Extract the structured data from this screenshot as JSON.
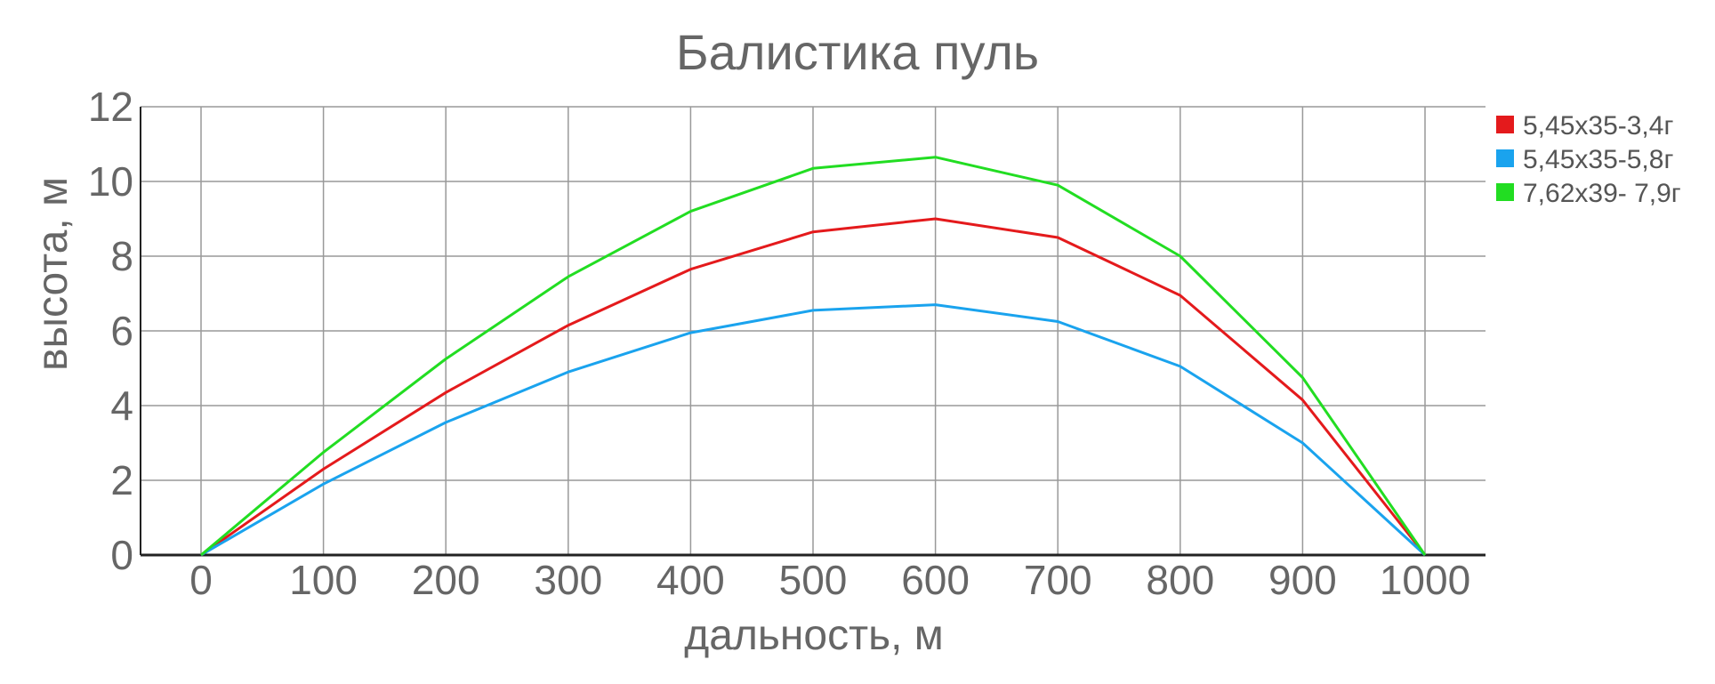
{
  "chart_data": {
    "type": "line",
    "title": "Балистика пуль",
    "xlabel": "дальность, м",
    "ylabel": "высота, м",
    "x": [
      0,
      100,
      200,
      300,
      400,
      500,
      600,
      700,
      800,
      900,
      1000
    ],
    "x_ticks": [
      "0",
      "100",
      "200",
      "300",
      "400",
      "500",
      "600",
      "700",
      "800",
      "900",
      "1000"
    ],
    "y_ticks": [
      "0",
      "2",
      "4",
      "6",
      "8",
      "10",
      "12"
    ],
    "ylim": [
      0,
      12
    ],
    "grid": true,
    "legend_position": "right",
    "series": [
      {
        "name": "5,45х35-3,4г",
        "color": "#e41a1c",
        "values": [
          0,
          2.3,
          4.35,
          6.15,
          7.65,
          8.65,
          9.0,
          8.5,
          6.95,
          4.15,
          0
        ]
      },
      {
        "name": "5,45х35-5,8г",
        "color": "#1aa3ee",
        "values": [
          0,
          1.9,
          3.55,
          4.9,
          5.95,
          6.55,
          6.7,
          6.25,
          5.05,
          3.0,
          0
        ]
      },
      {
        "name": "7,62х39- 7,9г",
        "color": "#22dd22",
        "values": [
          0,
          2.75,
          5.25,
          7.45,
          9.2,
          10.35,
          10.65,
          9.9,
          8.0,
          4.75,
          0
        ]
      }
    ]
  }
}
